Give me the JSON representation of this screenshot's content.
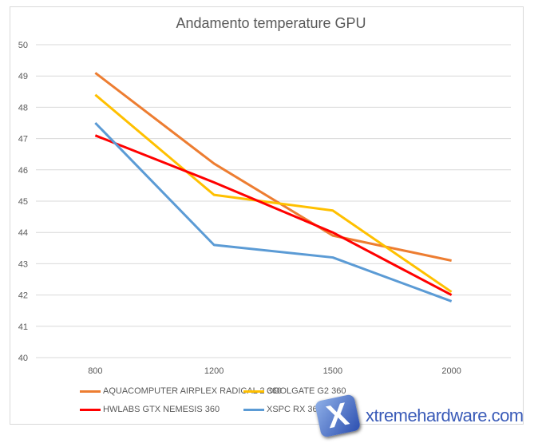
{
  "chart_data": {
    "type": "line",
    "title": "Andamento temperature GPU",
    "categories": [
      "800",
      "1200",
      "1500",
      "2000"
    ],
    "ylim": [
      40,
      50
    ],
    "yticks": [
      40,
      41,
      42,
      43,
      44,
      45,
      46,
      47,
      48,
      49,
      50
    ],
    "grid": true,
    "legend_position": "bottom",
    "series": [
      {
        "name": "AQUACOMPUTER AIRPLEX RADICAL 2 360",
        "color": "#ed7d31",
        "values": [
          49.1,
          46.2,
          43.9,
          43.1
        ]
      },
      {
        "name": "COOLGATE G2 360",
        "color": "#ffc000",
        "values": [
          48.4,
          45.2,
          44.7,
          42.1
        ]
      },
      {
        "name": "HWLABS GTX NEMESIS 360",
        "color": "#ff0000",
        "values": [
          47.1,
          45.6,
          44.0,
          42.0
        ]
      },
      {
        "name": "XSPC RX 360",
        "color": "#5b9bd5",
        "values": [
          47.5,
          43.6,
          43.2,
          41.8
        ]
      }
    ]
  },
  "watermark": {
    "mark": "X",
    "text": "xtremehardware.com"
  }
}
